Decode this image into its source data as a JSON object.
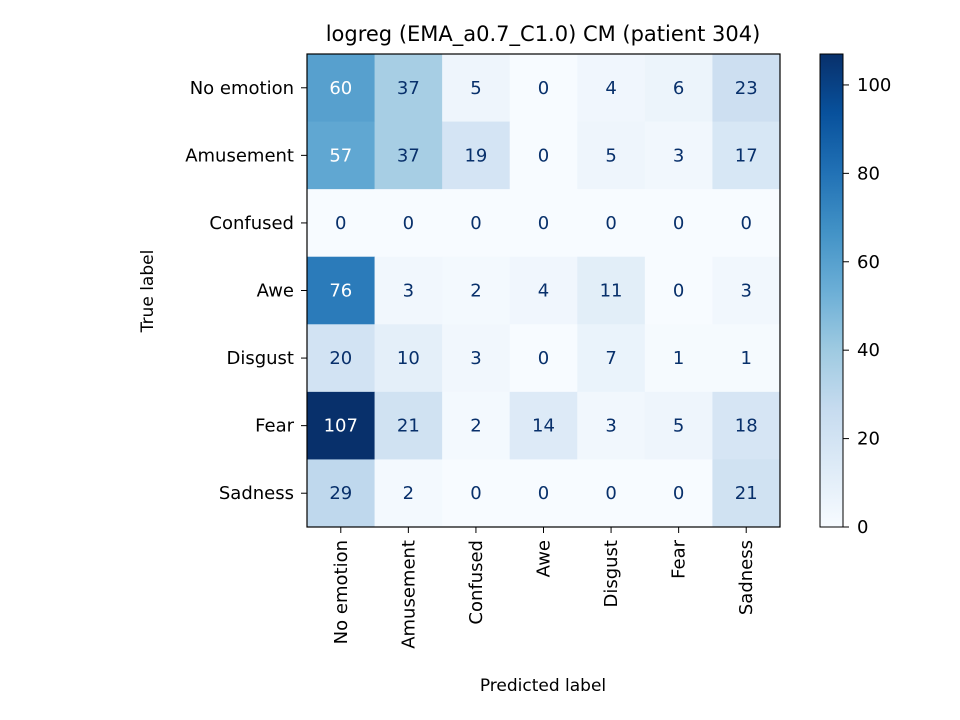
{
  "chart_data": {
    "type": "heatmap",
    "title": "logreg (EMA_a0.7_C1.0) CM (patient 304)",
    "xlabel": "Predicted label",
    "ylabel": "True label",
    "row_labels": [
      "No emotion",
      "Amusement",
      "Confused",
      "Awe",
      "Disgust",
      "Fear",
      "Sadness"
    ],
    "col_labels": [
      "No emotion",
      "Amusement",
      "Confused",
      "Awe",
      "Disgust",
      "Fear",
      "Sadness"
    ],
    "values": [
      [
        60,
        37,
        5,
        0,
        4,
        6,
        23
      ],
      [
        57,
        37,
        19,
        0,
        5,
        3,
        17
      ],
      [
        0,
        0,
        0,
        0,
        0,
        0,
        0
      ],
      [
        76,
        3,
        2,
        4,
        11,
        0,
        3
      ],
      [
        20,
        10,
        3,
        0,
        7,
        1,
        1
      ],
      [
        107,
        21,
        2,
        14,
        3,
        5,
        18
      ],
      [
        29,
        2,
        0,
        0,
        0,
        0,
        21
      ]
    ],
    "colormap": "Blues",
    "vmin": 0,
    "vmax": 107,
    "colorbar_ticks": [
      0,
      20,
      40,
      60,
      80,
      100
    ],
    "grid": false
  }
}
